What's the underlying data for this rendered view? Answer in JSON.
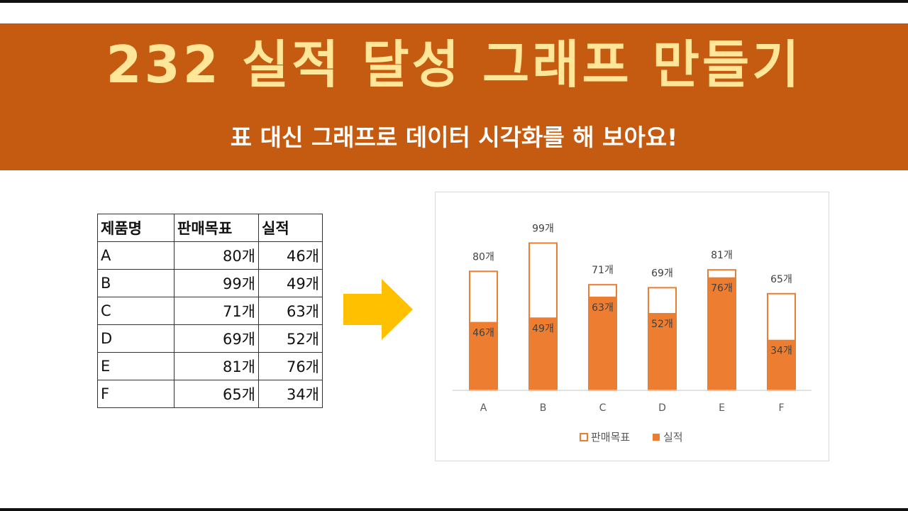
{
  "header": {
    "title": "232 실적 달성 그래프 만들기",
    "subtitle": "표 대신 그래프로 데이터 시각화를 해 보아요!"
  },
  "table": {
    "headers": [
      "제품명",
      "판매목표",
      "실적"
    ],
    "rows": [
      [
        "A",
        "80개",
        "46개"
      ],
      [
        "B",
        "99개",
        "49개"
      ],
      [
        "C",
        "71개",
        "63개"
      ],
      [
        "D",
        "69개",
        "52개"
      ],
      [
        "E",
        "81개",
        "76개"
      ],
      [
        "F",
        "65개",
        "34개"
      ]
    ]
  },
  "colors": {
    "banner": "#c55a11",
    "title": "#ffe699",
    "bar": "#ed7d31",
    "arrow": "#ffc000"
  },
  "chart_data": {
    "type": "bar",
    "categories": [
      "A",
      "B",
      "C",
      "D",
      "E",
      "F"
    ],
    "series": [
      {
        "name": "판매목표",
        "values": [
          80,
          99,
          71,
          69,
          81,
          65
        ],
        "style": "outline"
      },
      {
        "name": "실적",
        "values": [
          46,
          49,
          63,
          52,
          76,
          34
        ],
        "style": "filled"
      }
    ],
    "unit": "개",
    "overlap": true,
    "ylim": [
      0,
      100
    ],
    "grid": false,
    "legend": "bottom"
  }
}
